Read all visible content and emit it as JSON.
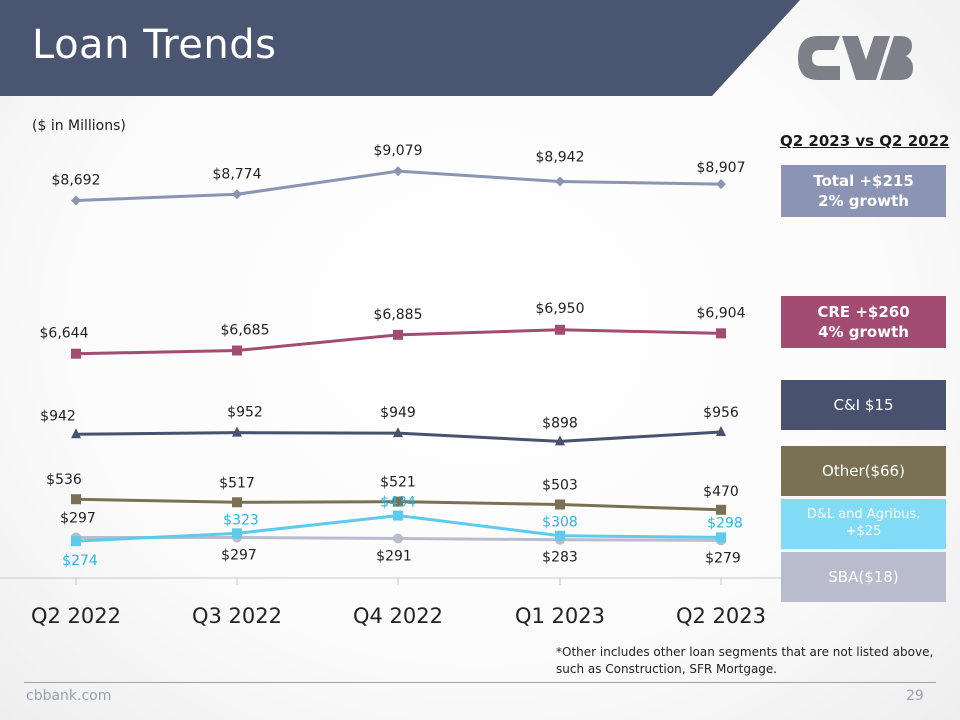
{
  "header": {
    "title": "Loan Trends"
  },
  "units_note": "($ in Millions)",
  "comparison": {
    "heading": "Q2 2023 vs Q2 2022",
    "boxes": {
      "total": {
        "line1": "Total +$215",
        "line2": "2% growth",
        "color": "#8b95b3"
      },
      "cre": {
        "line1": "CRE +$260",
        "line2": "4% growth",
        "color": "#a24c72"
      },
      "ci": {
        "line1": "C&I $15",
        "color": "#48526e"
      },
      "other": {
        "line1": "Other($66)",
        "color": "#7a7053"
      },
      "dl": {
        "line1": "D&L and Agribus.",
        "line2": "+$25",
        "color": "#82dcf7"
      },
      "sba": {
        "line1": "SBA($18)",
        "color": "#b9bccc"
      }
    }
  },
  "footnote": "*Other includes other loan segments that are not listed above, such as Construction, SFR Mortgage.",
  "footer": {
    "website": "cbbank.com",
    "page": "29"
  },
  "colors": {
    "header": "#4a5572",
    "logo": "#7d8088"
  },
  "chart_data": {
    "type": "line",
    "categories": [
      "Q2 2022",
      "Q3 2022",
      "Q4 2022",
      "Q1 2023",
      "Q2 2023"
    ],
    "series": [
      {
        "key": "total",
        "color": "#8b95b3",
        "labelColor": "#222222",
        "marker": "diamond",
        "values": [
          8692,
          8774,
          9079,
          8942,
          8907
        ],
        "labels": [
          "$8,692",
          "$8,774",
          "$9,079",
          "$8,942",
          "$8,907"
        ]
      },
      {
        "key": "cre",
        "color": "#a24c72",
        "labelColor": "#222222",
        "marker": "square",
        "values": [
          6644,
          6685,
          6885,
          6950,
          6904
        ],
        "labels": [
          "$6,644",
          "$6,685",
          "$6,885",
          "$6,950",
          "$6,904"
        ]
      },
      {
        "key": "ci",
        "color": "#48526e",
        "labelColor": "#222222",
        "marker": "triangle",
        "values": [
          942,
          952,
          949,
          898,
          956
        ],
        "labels": [
          "$942",
          "$952",
          "$949",
          "$898",
          "$956"
        ]
      },
      {
        "key": "other",
        "color": "#7a7053",
        "labelColor": "#222222",
        "marker": "square",
        "values": [
          536,
          517,
          521,
          503,
          470
        ],
        "labels": [
          "$536",
          "$517",
          "$521",
          "$503",
          "$470"
        ]
      },
      {
        "key": "dl",
        "color": "#5ccbee",
        "labelColor": "#29b6e6",
        "marker": "square",
        "values": [
          274,
          323,
          434,
          308,
          298
        ],
        "labels": [
          "$274",
          "$323",
          "$434",
          "$308",
          "$298"
        ]
      },
      {
        "key": "sba",
        "color": "#b9bccc",
        "labelColor": "#222222",
        "marker": "circle",
        "values": [
          297,
          297,
          291,
          283,
          279
        ],
        "labels": [
          "$297",
          "$297",
          "$291",
          "$283",
          "$279"
        ]
      }
    ]
  }
}
